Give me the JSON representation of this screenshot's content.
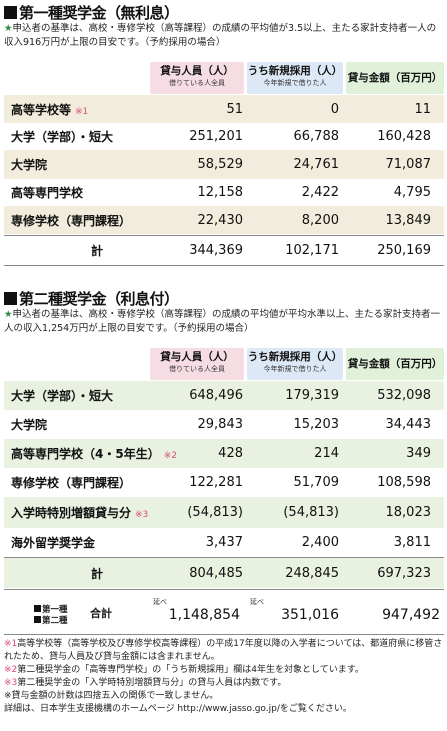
{
  "section1": {
    "title": "第一種奨学金（無利息）",
    "note_star": "★",
    "note": "申込者の基準は、高校・専修学校（高等課程）の成績の平均値が3.5以上、主たる家計支持者一人の収入916万円が上限の目安です。（予約採用の場合）",
    "headers": [
      {
        "main": "貸与人員（人）",
        "sub": "借りている人全員"
      },
      {
        "main": "うち新規採用（人）",
        "sub": "今年新規で借りた人"
      },
      {
        "main": "貸与金額（百万円）",
        "sub": ""
      }
    ],
    "rows": [
      {
        "label": "高等学校等",
        "mark": "※1",
        "v1": "51",
        "v2": "0",
        "v3": "11"
      },
      {
        "label": "大学（学部）・短大",
        "mark": "",
        "v1": "251,201",
        "v2": "66,788",
        "v3": "160,428"
      },
      {
        "label": "大学院",
        "mark": "",
        "v1": "58,529",
        "v2": "24,761",
        "v3": "71,087"
      },
      {
        "label": "高等専門学校",
        "mark": "",
        "v1": "12,158",
        "v2": "2,422",
        "v3": "4,795"
      },
      {
        "label": "専修学校（専門課程）",
        "mark": "",
        "v1": "22,430",
        "v2": "8,200",
        "v3": "13,849"
      }
    ],
    "total": {
      "label": "計",
      "v1": "344,369",
      "v2": "102,171",
      "v3": "250,169"
    }
  },
  "section2": {
    "title": "第二種奨学金（利息付）",
    "note_star": "★",
    "note": "申込者の基準は、高校・専修学校（高等課程）の成績の平均値が平均水準以上、主たる家計支持者一人の収入1,254万円が上限の目安です。（予約採用の場合）",
    "headers": [
      {
        "main": "貸与人員（人）",
        "sub": "借りている人全員"
      },
      {
        "main": "うち新規採用（人）",
        "sub": "今年新規で借りた人"
      },
      {
        "main": "貸与金額（百万円）",
        "sub": ""
      }
    ],
    "rows": [
      {
        "label": "大学（学部）・短大",
        "mark": "",
        "v1": "648,496",
        "v2": "179,319",
        "v3": "532,098"
      },
      {
        "label": "大学院",
        "mark": "",
        "v1": "29,843",
        "v2": "15,203",
        "v3": "34,443"
      },
      {
        "label": "高等専門学校（4・5年生）",
        "mark": "※2",
        "v1": "428",
        "v2": "214",
        "v3": "349"
      },
      {
        "label": "専修学校（専門課程）",
        "mark": "",
        "v1": "122,281",
        "v2": "51,709",
        "v3": "108,598"
      },
      {
        "label": "入学時特別増額貸与分",
        "mark": "※3",
        "v1": "(54,813)",
        "v2": "(54,813)",
        "v3": "18,023"
      },
      {
        "label": "海外留学奨学金",
        "mark": "",
        "v1": "3,437",
        "v2": "2,400",
        "v3": "3,811"
      }
    ],
    "total": {
      "label": "計",
      "v1": "804,485",
      "v2": "248,845",
      "v3": "697,323"
    }
  },
  "grand": {
    "label1": "第一種",
    "label2": "第二種",
    "total_label": "合計",
    "small": "延べ",
    "v1": "1,148,854",
    "v2": "351,016",
    "v3": "947,492"
  },
  "footnotes": [
    {
      "mark": "※1",
      "text": "高等学校等（高等学校及び専修学校高等課程）の平成17年度以降の入学者については、都道府県に移管されたため、貸与人員及び貸与金額には含まれません。"
    },
    {
      "mark": "※2",
      "text": "第二種奨学金の「高等専門学校」の「うち新規採用」欄は4年生を対象としています。"
    },
    {
      "mark": "※3",
      "text": "第二種奨学金の「入学時特別増額貸与分」の貸与人員は内数です。"
    },
    {
      "mark": "",
      "text": "※貸与金額の計数は四捨五入の関係で一致しません。"
    },
    {
      "mark": "",
      "text": "詳細は、日本学生支援機構のホームページ http://www.jasso.go.jp/をご覧ください。"
    }
  ]
}
